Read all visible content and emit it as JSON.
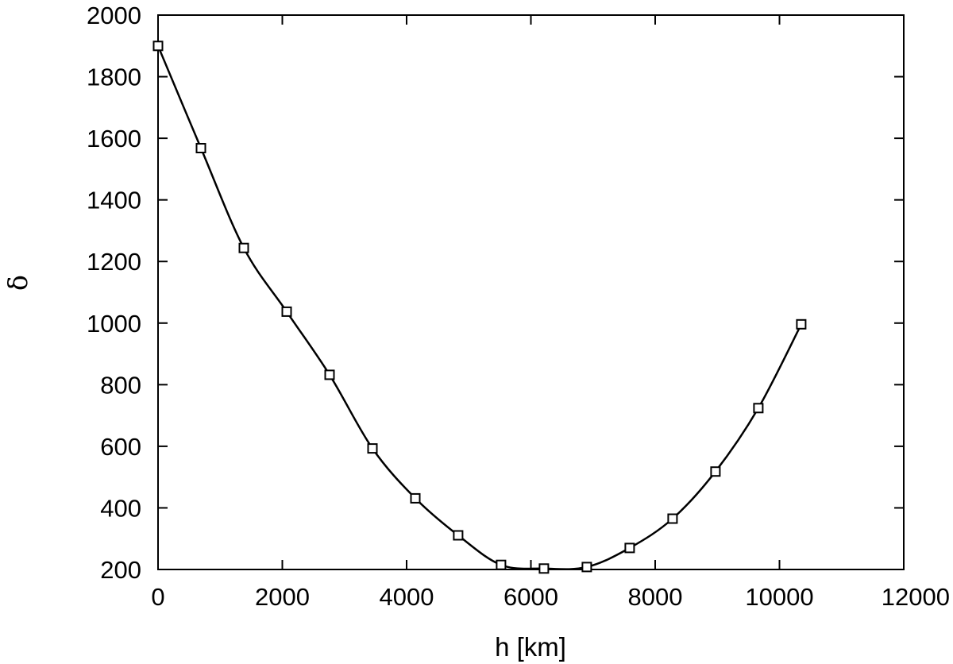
{
  "chart_data": {
    "type": "line",
    "title": "",
    "xlabel": "h [km]",
    "ylabel": "δ",
    "xlim": [
      0,
      12000
    ],
    "ylim": [
      200,
      2000
    ],
    "xticks": [
      0,
      2000,
      4000,
      6000,
      8000,
      10000,
      12000
    ],
    "yticks": [
      200,
      400,
      600,
      800,
      1000,
      1200,
      1400,
      1600,
      1800,
      2000
    ],
    "grid": false,
    "legend": "none",
    "marker": "open-square",
    "line_color": "#000000",
    "series": [
      {
        "x": [
          0,
          690,
          1380,
          2070,
          2760,
          3450,
          4140,
          4830,
          5520,
          6210,
          6900,
          7590,
          8280,
          8970,
          9660,
          10350
        ],
        "y": [
          1900,
          1568,
          1244,
          1037,
          832,
          593,
          431,
          311,
          215,
          203,
          208,
          270,
          365,
          518,
          724,
          996
        ]
      }
    ]
  }
}
